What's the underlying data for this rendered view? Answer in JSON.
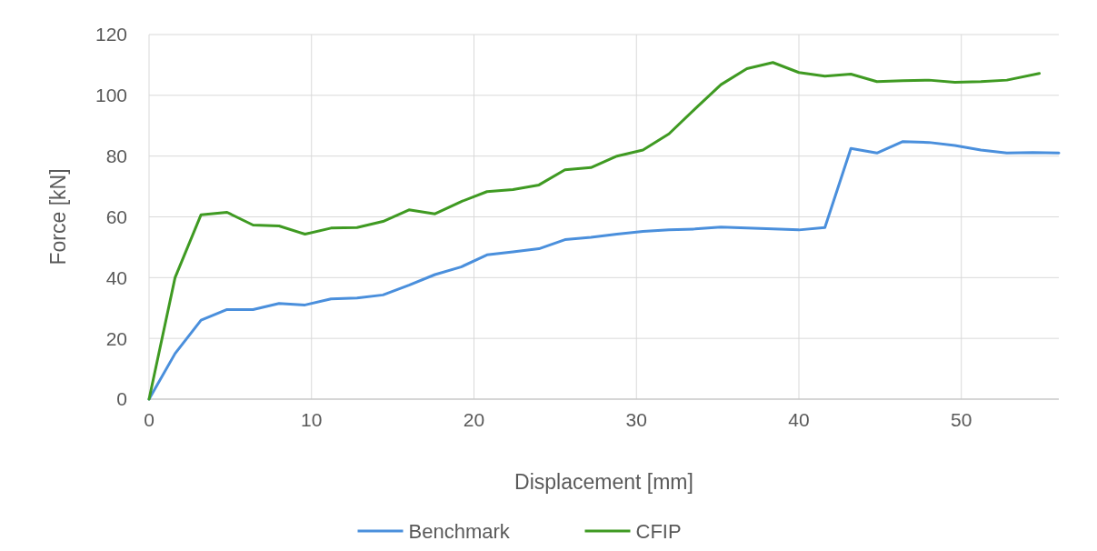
{
  "chart_data": {
    "type": "line",
    "xlabel": "Displacement [mm]",
    "ylabel": "Force [kN]",
    "xlim": [
      0,
      56
    ],
    "xticks": [
      0,
      10,
      20,
      30,
      40,
      50
    ],
    "ylim": [
      0,
      120
    ],
    "yticks": [
      0,
      20,
      40,
      60,
      80,
      100,
      120
    ],
    "grid": true,
    "legend": "bottom",
    "marker": "none",
    "line_style": "solid",
    "series": [
      {
        "name": "Benchmark",
        "color": "#4a8fdc",
        "x": [
          0,
          1.6,
          3.2,
          4.8,
          6.4,
          8,
          9.6,
          11.2,
          12.8,
          14.4,
          16,
          17.6,
          19.2,
          20.8,
          22.4,
          24,
          25.6,
          27.2,
          28.8,
          30.4,
          32,
          33.6,
          35.2,
          36.8,
          38.4,
          40,
          41.6,
          43.2,
          44.8,
          46.4,
          48,
          49.6,
          51.2,
          52.8,
          54.4,
          56
        ],
        "values": [
          0,
          15,
          26,
          29.5,
          29.5,
          31.5,
          31,
          33,
          33.3,
          34.3,
          37.5,
          41,
          43.5,
          47.5,
          48.5,
          49.5,
          52.5,
          53.3,
          54.3,
          55.2,
          55.7,
          56,
          56.6,
          56.3,
          56,
          55.7,
          56.5,
          82.5,
          81,
          84.8,
          84.5,
          83.5,
          82,
          81,
          81.2,
          81
        ]
      },
      {
        "name": "CFIP",
        "color": "#3f9a22",
        "x": [
          0,
          1.6,
          3.2,
          4.8,
          6.4,
          8,
          9.6,
          11.2,
          12.8,
          14.4,
          16,
          17.6,
          19.2,
          20.8,
          22.4,
          24,
          25.6,
          27.2,
          28.8,
          30.4,
          32,
          33.6,
          35.2,
          36.8,
          38.4,
          40,
          41.6,
          43.2,
          44.8,
          46.4,
          48,
          49.6,
          51.2,
          52.8,
          54.8
        ],
        "values": [
          0,
          40,
          60.7,
          61.5,
          57.3,
          57,
          54.3,
          56.3,
          56.5,
          58.5,
          62.3,
          61,
          65,
          68.3,
          69,
          70.5,
          75.5,
          76.2,
          80,
          82,
          87.3,
          95.5,
          103.5,
          108.8,
          110.8,
          107.5,
          106.3,
          107,
          104.5,
          104.8,
          105,
          104.3,
          104.5,
          105,
          107.2
        ]
      }
    ]
  }
}
